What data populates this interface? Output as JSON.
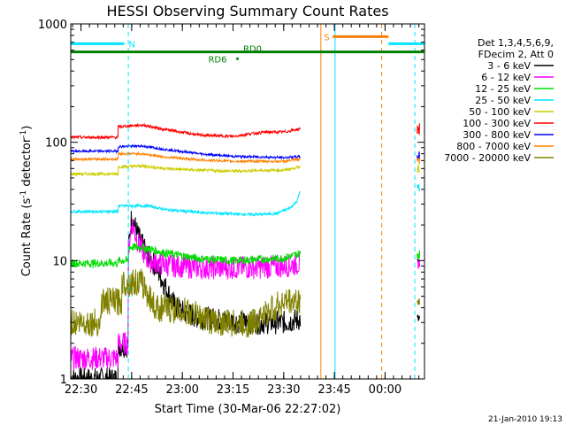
{
  "chart_data": {
    "type": "line",
    "title": "HESSI Observing Summary Count Rates",
    "xlabel": "Start Time (30-Mar-06 22:27:02)",
    "ylabel_main": "Count Rate (s",
    "ylabel_sup1": "-1",
    "ylabel_mid": " detector",
    "ylabel_sup2": "-1",
    "ylabel_end": ")",
    "yscale": "log",
    "ylim": [
      1,
      1000
    ],
    "xlim_minutes": [
      -3.03,
      101.67
    ],
    "x_ticks": [
      {
        "label": "22:30",
        "min": 0
      },
      {
        "label": "22:45",
        "min": 15
      },
      {
        "label": "23:00",
        "min": 30
      },
      {
        "label": "23:15",
        "min": 45
      },
      {
        "label": "23:30",
        "min": 60
      },
      {
        "label": "23:45",
        "min": 75
      },
      {
        "label": "00:00",
        "min": 90
      }
    ],
    "y_ticks": [
      {
        "label": "1",
        "value": 1
      },
      {
        "label": "10",
        "value": 10
      },
      {
        "label": "100",
        "value": 100
      },
      {
        "label": "1000",
        "value": 1000
      }
    ],
    "legend_header": [
      "Det 1,3,4,5,6,9,",
      "FDecim 2, Att 0"
    ],
    "series": [
      {
        "name": "3 - 6 keV",
        "color": "#000000",
        "points": [
          [
            -3,
            1
          ],
          [
            11,
            1
          ],
          [
            11,
            1.9
          ],
          [
            14,
            1.9
          ],
          [
            14,
            12
          ],
          [
            15,
            24
          ],
          [
            17,
            16
          ],
          [
            19,
            12
          ],
          [
            22,
            9
          ],
          [
            25,
            6
          ],
          [
            28,
            4
          ],
          [
            31,
            3.6
          ],
          [
            35,
            3.3
          ],
          [
            40,
            3.2
          ],
          [
            48,
            3.0
          ],
          [
            55,
            3.0
          ],
          [
            60,
            3.0
          ],
          [
            65,
            3.2
          ]
        ]
      },
      {
        "name": "6 - 12 keV",
        "color": "#ff00ff",
        "points": [
          [
            -3,
            1.5
          ],
          [
            11,
            1.5
          ],
          [
            11,
            2.0
          ],
          [
            14,
            2.0
          ],
          [
            14,
            12
          ],
          [
            15,
            21
          ],
          [
            17,
            14
          ],
          [
            20,
            10
          ],
          [
            25,
            9.2
          ],
          [
            35,
            8.7
          ],
          [
            45,
            8.7
          ],
          [
            55,
            8.8
          ],
          [
            60,
            9.0
          ],
          [
            65,
            9.5
          ]
        ]
      },
      {
        "name": "12 - 25 keV",
        "color": "#00dd00",
        "points": [
          [
            -3,
            9.5
          ],
          [
            11,
            9.5
          ],
          [
            11,
            10.0
          ],
          [
            14,
            10.0
          ],
          [
            14,
            13
          ],
          [
            18,
            13
          ],
          [
            25,
            11.6
          ],
          [
            35,
            10.4
          ],
          [
            45,
            10.0
          ],
          [
            55,
            10.3
          ],
          [
            60,
            10.5
          ],
          [
            65,
            11.5
          ]
        ]
      },
      {
        "name": "25 - 50 keV",
        "color": "#00e5ff",
        "points": [
          [
            -3,
            26
          ],
          [
            11,
            26
          ],
          [
            11,
            29
          ],
          [
            20,
            29
          ],
          [
            25,
            27
          ],
          [
            35,
            25.5
          ],
          [
            45,
            24.8
          ],
          [
            52,
            24.5
          ],
          [
            58,
            25
          ],
          [
            62,
            28
          ],
          [
            64,
            32
          ],
          [
            65,
            40
          ]
        ]
      },
      {
        "name": "50 - 100 keV",
        "color": "#cccc00",
        "points": [
          [
            -3,
            54
          ],
          [
            11,
            54
          ],
          [
            11,
            62
          ],
          [
            18,
            63
          ],
          [
            25,
            60
          ],
          [
            35,
            58
          ],
          [
            45,
            57
          ],
          [
            55,
            58
          ],
          [
            60,
            58
          ],
          [
            65,
            62
          ]
        ]
      },
      {
        "name": "100 - 300 keV",
        "color": "#ff0000",
        "points": [
          [
            -3,
            110
          ],
          [
            11,
            110
          ],
          [
            11,
            135
          ],
          [
            18,
            140
          ],
          [
            25,
            128
          ],
          [
            35,
            115
          ],
          [
            45,
            112
          ],
          [
            50,
            118
          ],
          [
            55,
            122
          ],
          [
            60,
            122
          ],
          [
            65,
            130
          ]
        ]
      },
      {
        "name": "300 - 800 keV",
        "color": "#0000ff",
        "points": [
          [
            -3,
            84
          ],
          [
            11,
            84
          ],
          [
            11,
            92
          ],
          [
            18,
            93
          ],
          [
            25,
            87
          ],
          [
            35,
            80
          ],
          [
            45,
            76
          ],
          [
            55,
            75
          ],
          [
            60,
            74
          ],
          [
            65,
            76
          ]
        ]
      },
      {
        "name": "800 - 7000 keV",
        "color": "#ff8000",
        "points": [
          [
            -3,
            72
          ],
          [
            11,
            72
          ],
          [
            11,
            80
          ],
          [
            18,
            80
          ],
          [
            25,
            75
          ],
          [
            35,
            71
          ],
          [
            45,
            69
          ],
          [
            55,
            69
          ],
          [
            60,
            69
          ],
          [
            65,
            72
          ]
        ]
      },
      {
        "name": "7000 - 20000 keV",
        "color": "#808000",
        "points": [
          [
            -3,
            3.0
          ],
          [
            6,
            3.0
          ],
          [
            6,
            4.5
          ],
          [
            12,
            4.5
          ],
          [
            12,
            6.5
          ],
          [
            18,
            6.5
          ],
          [
            22,
            4.0
          ],
          [
            30,
            3.8
          ],
          [
            40,
            3.0
          ],
          [
            50,
            2.9
          ],
          [
            55,
            3.6
          ],
          [
            60,
            4.5
          ],
          [
            65,
            4.5
          ]
        ]
      }
    ],
    "bars": [
      {
        "label": "N",
        "color": "#00e5ff",
        "value": 680,
        "from_min": -3,
        "to_min": 12.8
      },
      {
        "label": "S",
        "color": "#ff8000",
        "value": 780,
        "from_min": 74.5,
        "to_min": 91
      },
      {
        "label": "",
        "color": "#00e5ff",
        "value": 680,
        "from_min": 91,
        "to_min": 101.5
      },
      {
        "label": "RD0",
        "color": "#008000",
        "value": 580,
        "from_min": -3,
        "to_min": 101.5
      }
    ],
    "annotations": [
      {
        "label": "RD6",
        "color": "#008000",
        "min": 45,
        "value": 490
      }
    ],
    "vlines": [
      {
        "min": 14,
        "color": "#00e5ff",
        "dashed": true
      },
      {
        "min": 71,
        "color": "#ff8000",
        "dashed": false
      },
      {
        "min": 75.2,
        "color": "#00e5ff",
        "dashed": false
      },
      {
        "min": 89,
        "color": "#ff8000",
        "dashed": true
      },
      {
        "min": 98.8,
        "color": "#00e5ff",
        "dashed": true
      }
    ],
    "grid": false,
    "legend_position": "right",
    "footer_date": "21-Jan-2010 19:13"
  }
}
